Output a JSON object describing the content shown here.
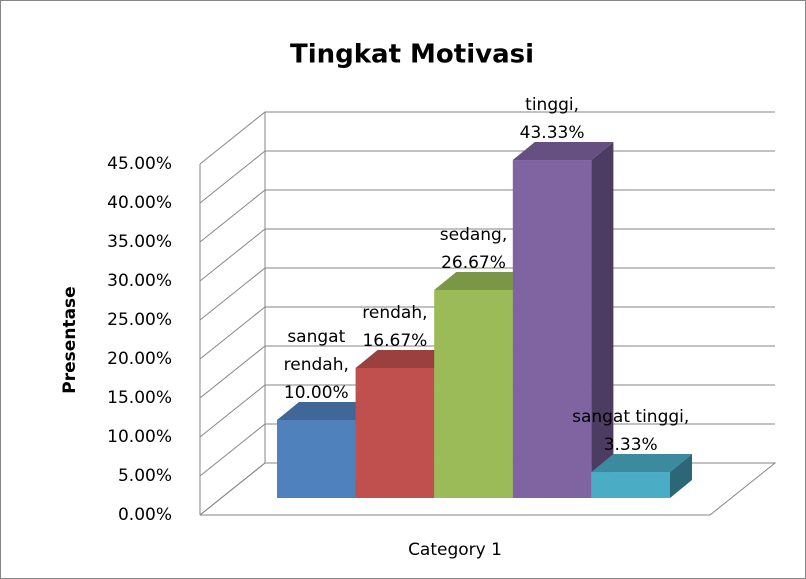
{
  "chart_data": {
    "type": "bar3d",
    "title": "Tingkat Motivasi",
    "ylabel": "Presentase",
    "categories": [
      "Category 1"
    ],
    "series": [
      {
        "name": "sangat rendah",
        "color": "#4f81bd",
        "values": [
          10.0
        ],
        "value_labels": [
          "sangat rendah, 10.00%"
        ]
      },
      {
        "name": "rendah",
        "color": "#c0504d",
        "values": [
          16.67
        ],
        "value_labels": [
          "rendah, 16.67%"
        ]
      },
      {
        "name": "sedang",
        "color": "#9bbb59",
        "values": [
          26.67
        ],
        "value_labels": [
          "sedang, 26.67%"
        ]
      },
      {
        "name": "tinggi",
        "color": "#8064a2",
        "values": [
          43.33
        ],
        "value_labels": [
          "tinggi, 43.33%"
        ]
      },
      {
        "name": "sangat tinggi",
        "color": "#4bacc6",
        "values": [
          3.33
        ],
        "value_labels": [
          "sangat tinggi, 3.33%"
        ]
      }
    ],
    "ylim": [
      0,
      45
    ],
    "yticks": [
      {
        "value": 0,
        "label": "0.00%"
      },
      {
        "value": 5,
        "label": "5.00%"
      },
      {
        "value": 10,
        "label": "10.00%"
      },
      {
        "value": 15,
        "label": "15.00%"
      },
      {
        "value": 20,
        "label": "20.00%"
      },
      {
        "value": 25,
        "label": "25.00%"
      },
      {
        "value": 30,
        "label": "30.00%"
      },
      {
        "value": 35,
        "label": "35.00%"
      },
      {
        "value": 40,
        "label": "40.00%"
      },
      {
        "value": 45,
        "label": "45.00%"
      }
    ],
    "grid": true
  }
}
